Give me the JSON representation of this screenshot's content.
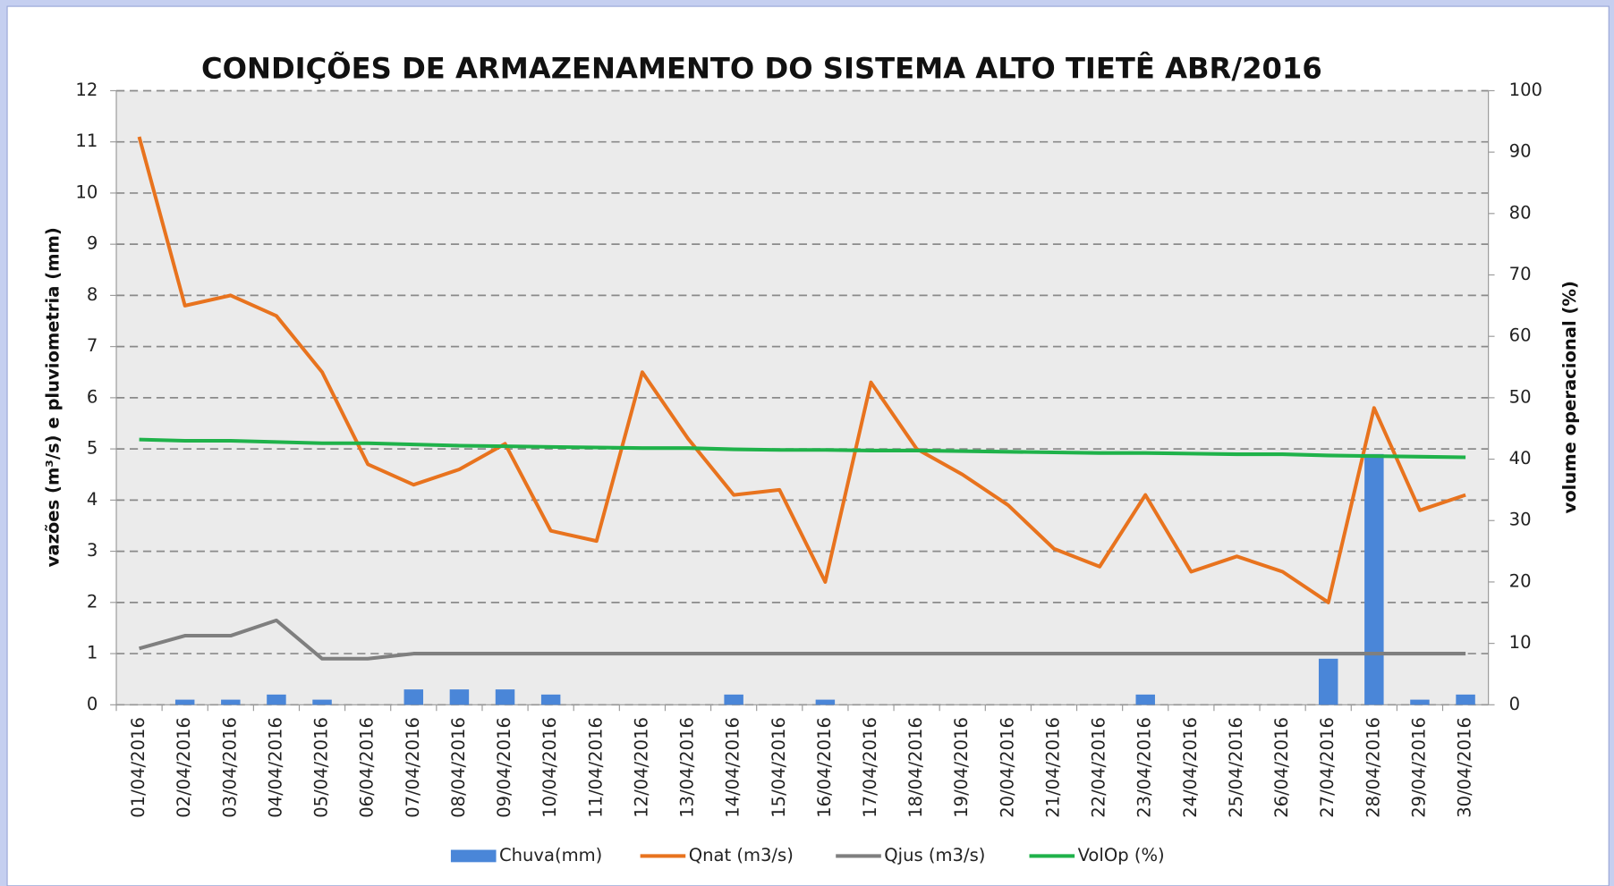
{
  "chart_data": {
    "type": "bar-line",
    "title": "CONDIÇÕES DE ARMAZENAMENTO DO SISTEMA ALTO TIETÊ    ABR/2016",
    "y_label": "vazões (m³/s) e pluviometria (mm)",
    "y2_label": "volume operacional (%)",
    "categories": [
      "01/04/2016",
      "02/04/2016",
      "03/04/2016",
      "04/04/2016",
      "05/04/2016",
      "06/04/2016",
      "07/04/2016",
      "08/04/2016",
      "09/04/2016",
      "10/04/2016",
      "11/04/2016",
      "12/04/2016",
      "13/04/2016",
      "14/04/2016",
      "15/04/2016",
      "16/04/2016",
      "17/04/2016",
      "18/04/2016",
      "19/04/2016",
      "20/04/2016",
      "21/04/2016",
      "22/04/2016",
      "23/04/2016",
      "24/04/2016",
      "25/04/2016",
      "26/04/2016",
      "27/04/2016",
      "28/04/2016",
      "29/04/2016",
      "30/04/2016"
    ],
    "series": [
      {
        "name": "Chuva(mm)",
        "type": "bar",
        "color": "#4a86d8",
        "values": [
          0,
          0.1,
          0.1,
          0.2,
          0.1,
          0,
          0.3,
          0.3,
          0.3,
          0.2,
          0,
          0,
          0,
          0.2,
          0,
          0.1,
          0,
          0,
          0,
          0,
          0,
          0,
          0.2,
          0,
          0,
          0,
          0.9,
          4.9,
          0.1,
          0.2
        ]
      },
      {
        "name": "Qnat (m3/s)",
        "type": "line",
        "color": "#e8731e",
        "values": [
          11.1,
          7.8,
          8.0,
          7.6,
          6.5,
          4.7,
          4.3,
          4.6,
          5.1,
          3.4,
          3.2,
          6.5,
          5.2,
          4.1,
          4.2,
          2.4,
          6.3,
          5.0,
          4.5,
          3.9,
          3.05,
          2.7,
          4.1,
          2.6,
          2.9,
          2.6,
          2.0,
          5.8,
          3.8,
          4.1
        ]
      },
      {
        "name": "Qjus (m3/s)",
        "type": "line",
        "color": "#7f7f7f",
        "values": [
          1.1,
          1.35,
          1.35,
          1.65,
          0.9,
          0.9,
          1.0,
          1.0,
          1.0,
          1.0,
          1.0,
          1.0,
          1.0,
          1.0,
          1.0,
          1.0,
          1.0,
          1.0,
          1.0,
          1.0,
          1.0,
          1.0,
          1.0,
          1.0,
          1.0,
          1.0,
          1.0,
          1.0,
          1.0,
          1.0
        ]
      },
      {
        "name": "VolOp (%)",
        "type": "line",
        "axis": "y2",
        "color": "#1fb24a",
        "values": [
          43.2,
          43.0,
          43.0,
          42.8,
          42.6,
          42.6,
          42.4,
          42.2,
          42.1,
          42.0,
          41.9,
          41.8,
          41.8,
          41.6,
          41.5,
          41.5,
          41.4,
          41.4,
          41.3,
          41.2,
          41.1,
          41.0,
          41.0,
          40.9,
          40.8,
          40.8,
          40.6,
          40.5,
          40.4,
          40.3
        ]
      }
    ],
    "ylim": [
      0,
      12
    ],
    "yticks": [
      0,
      1,
      2,
      3,
      4,
      5,
      6,
      7,
      8,
      9,
      10,
      11,
      12
    ],
    "y2lim": [
      0,
      100
    ],
    "y2ticks": [
      0,
      10,
      20,
      30,
      40,
      50,
      60,
      70,
      80,
      90,
      100
    ],
    "grid": true,
    "legend": "bottom"
  }
}
